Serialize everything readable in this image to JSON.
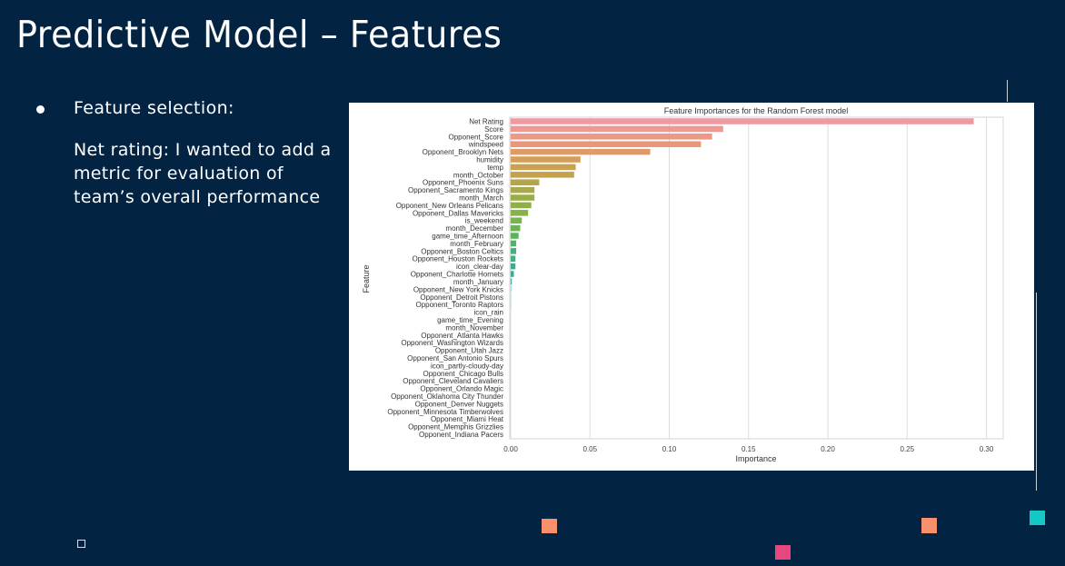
{
  "slide": {
    "title": "Predictive Model – Features",
    "bullet": {
      "heading": "Feature selection:",
      "body": "Net rating: I wanted to add a metric for evaluation of team’s overall performance"
    }
  },
  "colors": {
    "background": "#022341",
    "deco_orange": "#f6906d",
    "deco_pink": "#e8467c",
    "deco_teal": "#12c9c4"
  },
  "chart_data": {
    "type": "bar",
    "orientation": "horizontal",
    "title": "Feature Importances for the Random Forest model",
    "xlabel": "Importance",
    "ylabel": "Feature",
    "xlim": [
      0,
      0.31
    ],
    "xticks": [
      0.0,
      0.05,
      0.1,
      0.15,
      0.2,
      0.25,
      0.3
    ],
    "xtick_labels": [
      "0.00",
      "0.05",
      "0.10",
      "0.15",
      "0.20",
      "0.25",
      "0.30"
    ],
    "grid": "vertical",
    "categories": [
      "Net Rating",
      "Score",
      "Opponent_Score",
      "windspeed",
      "Opponent_Brooklyn Nets",
      "humidity",
      "temp",
      "month_October",
      "Opponent_Phoenix Suns",
      "Opponent_Sacramento Kings",
      "month_March",
      "Opponent_New Orleans Pelicans",
      "Opponent_Dallas Mavericks",
      "is_weekend",
      "month_December",
      "game_time_Afternoon",
      "month_February",
      "Opponent_Boston Celtics",
      "Opponent_Houston Rockets",
      "icon_clear-day",
      "Opponent_Charlotte Hornets",
      "month_January",
      "Opponent_New York Knicks",
      "Opponent_Detroit Pistons",
      "Opponent_Toronto Raptors",
      "icon_rain",
      "game_time_Evening",
      "month_November",
      "Opponent_Atlanta Hawks",
      "Opponent_Washington Wizards",
      "Opponent_Utah Jazz",
      "Opponent_San Antonio Spurs",
      "icon_partly-cloudy-day",
      "Opponent_Chicago Bulls",
      "Opponent_Cleveland Cavaliers",
      "Opponent_Orlando Magic",
      "Opponent_Oklahoma City Thunder",
      "Opponent_Denver Nuggets",
      "Opponent_Minnesota Timberwolves",
      "Opponent_Miami Heat",
      "Opponent_Memphis Grizzlies",
      "Opponent_Indiana Pacers"
    ],
    "values": [
      0.292,
      0.134,
      0.127,
      0.12,
      0.088,
      0.044,
      0.041,
      0.04,
      0.018,
      0.015,
      0.015,
      0.013,
      0.011,
      0.007,
      0.006,
      0.005,
      0.0035,
      0.0035,
      0.003,
      0.003,
      0.002,
      0.0007,
      0.0002,
      0.0001,
      0.0001,
      0,
      0,
      0,
      0,
      0,
      0,
      0,
      0,
      0,
      0,
      0,
      0,
      0,
      0,
      0,
      0,
      0
    ],
    "colors": [
      "#ee9aa2",
      "#ee9893",
      "#ec9886",
      "#e89878",
      "#e09a68",
      "#d49e58",
      "#cba04f",
      "#c4a24c",
      "#b4a548",
      "#a9a947",
      "#9bad47",
      "#8fb048",
      "#84b34a",
      "#78b44c",
      "#6bb452",
      "#5db35c",
      "#52b266",
      "#4aaf76",
      "#45ad84",
      "#42ab8e",
      "#41aa96",
      "#3fa99e",
      "#3ea8a5",
      "#3ea6ab",
      "#3ea5b1",
      "#3fa4b7",
      "#41a2bd",
      "#44a0c3",
      "#489ec9",
      "#4c9bce",
      "#5298d4",
      "#5895d9",
      "#5f91de",
      "#678de2",
      "#7088e6",
      "#7a84e9",
      "#847eec",
      "#8e79ee",
      "#9873ef",
      "#a26df0",
      "#ab67ef",
      "#b461ed"
    ]
  }
}
